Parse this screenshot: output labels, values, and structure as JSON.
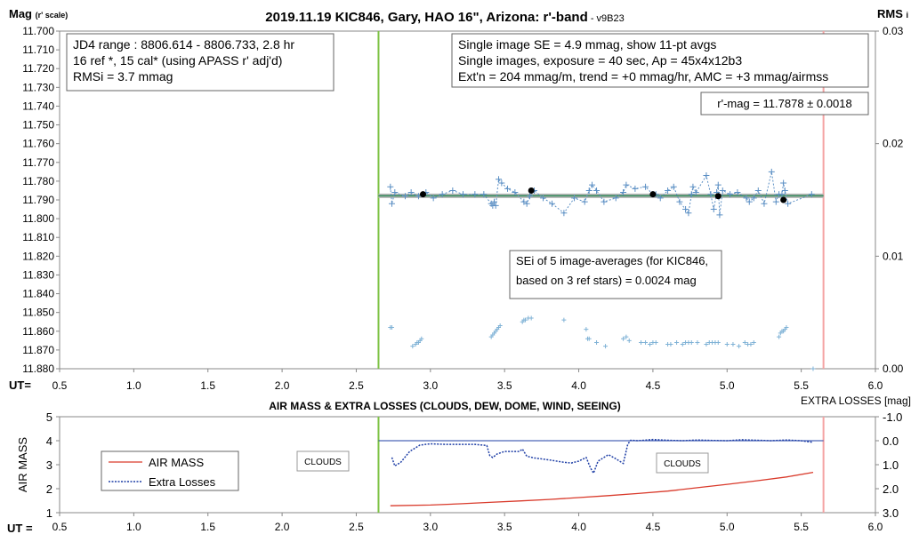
{
  "chart_data": [
    {
      "type": "scatter",
      "title": "2019.11.19 KIC846, Gary, HAO 16\", Arizona: r'-band",
      "version_tag": "- v9B23",
      "ylabel_left": "Mag",
      "ylabel_left_note": "(r' scale)",
      "ylabel_right": "RMS",
      "ylabel_right_note": "i",
      "xlabel": "UT=",
      "x_range": [
        0.5,
        6.0
      ],
      "x_ticks": [
        "0.5",
        "1.0",
        "1.5",
        "2.0",
        "2.5",
        "3.0",
        "3.5",
        "4.0",
        "4.5",
        "5.0",
        "5.5",
        "6.0"
      ],
      "y_range": [
        11.7,
        11.88
      ],
      "y_reversed": true,
      "y_ticks": [
        "11.700",
        "11.710",
        "11.720",
        "11.730",
        "11.740",
        "11.750",
        "11.760",
        "11.770",
        "11.780",
        "11.790",
        "11.800",
        "11.810",
        "11.820",
        "11.830",
        "11.840",
        "11.850",
        "11.860",
        "11.870",
        "11.880"
      ],
      "y2_range": [
        0.0,
        0.03
      ],
      "y2_ticks": [
        "0.03",
        "0.02",
        "0.01",
        "0.00"
      ],
      "grid": false,
      "vertical_markers": [
        {
          "x": 2.65,
          "color": "#7cc242"
        },
        {
          "x": 5.65,
          "color": "#f4a3a3"
        }
      ],
      "annotations": {
        "box1": [
          "JD4 range : 8806.614 - 8806.733,  2.8  hr",
          "16 ref *, 15 cal* (using APASS r' adj'd)",
          "RMSi = 3.7 mmag"
        ],
        "box2": [
          "Single image SE = 4.9 mmag, show  11-pt avgs",
          "Single images, exposure = 40 sec, Ap = 45x4x12b3",
          "Ext'n = 204 mmag/m, trend =  +0 mmag/hr, AMC = +3 mmag/airmss"
        ],
        "box3": "r'-mag = 11.7878 ± 0.0018",
        "box4": [
          "SEi of 5 image-averages (for KIC846,",
          "based on 3 ref stars) = 0.0024 mag"
        ]
      },
      "series": [
        {
          "role": "single-images",
          "color": "#5b8fc4",
          "x": [
            2.73,
            2.74,
            2.76,
            2.83,
            2.87,
            2.92,
            2.97,
            3.02,
            3.08,
            3.15,
            3.22,
            3.3,
            3.36,
            3.41,
            3.42,
            3.43,
            3.44,
            3.46,
            3.48,
            3.52,
            3.57,
            3.63,
            3.65,
            3.67,
            3.7,
            3.76,
            3.82,
            3.9,
            3.97,
            4.04,
            4.07,
            4.09,
            4.12,
            4.17,
            4.25,
            4.3,
            4.32,
            4.38,
            4.45,
            4.5,
            4.52,
            4.55,
            4.6,
            4.64,
            4.68,
            4.72,
            4.74,
            4.76,
            4.77,
            4.79,
            4.86,
            4.89,
            4.91,
            4.93,
            4.94,
            4.95,
            4.97,
            5.02,
            5.07,
            5.13,
            5.15,
            5.18,
            5.21,
            5.25,
            5.3,
            5.33,
            5.35,
            5.37,
            5.38,
            5.39,
            5.41,
            5.57
          ],
          "y": [
            11.783,
            11.792,
            11.786,
            11.788,
            11.786,
            11.788,
            11.786,
            11.789,
            11.787,
            11.785,
            11.787,
            11.787,
            11.787,
            11.792,
            11.793,
            11.791,
            11.793,
            11.779,
            11.781,
            11.784,
            11.786,
            11.791,
            11.792,
            11.788,
            11.785,
            11.789,
            11.792,
            11.797,
            11.789,
            11.791,
            11.785,
            11.782,
            11.785,
            11.791,
            11.789,
            11.786,
            11.782,
            11.784,
            11.783,
            11.787,
            11.787,
            11.789,
            11.785,
            11.783,
            11.791,
            11.795,
            11.797,
            11.787,
            11.783,
            11.786,
            11.777,
            11.787,
            11.795,
            11.786,
            11.782,
            11.798,
            11.785,
            11.787,
            11.786,
            11.789,
            11.791,
            11.789,
            11.785,
            11.792,
            11.775,
            11.791,
            11.787,
            11.787,
            11.781,
            11.785,
            11.792,
            11.787
          ]
        },
        {
          "role": "averages",
          "color": "#000000",
          "x": [
            2.95,
            3.68,
            4.5,
            4.94,
            5.38
          ],
          "y": [
            11.787,
            11.785,
            11.787,
            11.788,
            11.79
          ]
        },
        {
          "role": "ref-stars",
          "color": "#7fb2d6",
          "x": [
            2.73,
            2.74,
            2.88,
            2.9,
            2.91,
            2.92,
            2.93,
            2.94,
            3.41,
            3.42,
            3.43,
            3.44,
            3.45,
            3.46,
            3.47,
            3.62,
            3.63,
            3.64,
            3.66,
            3.68,
            3.9,
            4.05,
            4.06,
            4.07,
            4.12,
            4.18,
            4.3,
            4.32,
            4.34,
            4.42,
            4.45,
            4.48,
            4.5,
            4.52,
            4.6,
            4.62,
            4.66,
            4.7,
            4.72,
            4.74,
            4.76,
            4.8,
            4.86,
            4.88,
            4.9,
            4.92,
            4.94,
            5.0,
            5.04,
            5.08,
            5.12,
            5.14,
            5.16,
            5.18,
            5.35,
            5.36,
            5.37,
            5.38,
            5.39,
            5.4,
            5.58
          ],
          "y": [
            11.858,
            11.858,
            11.868,
            11.867,
            11.866,
            11.866,
            11.865,
            11.864,
            11.863,
            11.862,
            11.861,
            11.86,
            11.859,
            11.858,
            11.857,
            11.855,
            11.854,
            11.854,
            11.853,
            11.853,
            11.854,
            11.859,
            11.864,
            11.864,
            11.866,
            11.868,
            11.864,
            11.863,
            11.865,
            11.866,
            11.866,
            11.867,
            11.866,
            11.866,
            11.867,
            11.867,
            11.866,
            11.867,
            11.866,
            11.866,
            11.866,
            11.866,
            11.867,
            11.866,
            11.866,
            11.866,
            11.866,
            11.867,
            11.867,
            11.868,
            11.866,
            11.867,
            11.867,
            11.866,
            11.863,
            11.861,
            11.86,
            11.86,
            11.859,
            11.858,
            11.88
          ]
        }
      ],
      "fit_line": {
        "x": [
          2.65,
          5.65
        ],
        "y": [
          11.7878,
          11.7878
        ]
      }
    },
    {
      "type": "line",
      "title": "AIR MASS & EXTRA LOSSES (CLOUDS, DEW, DOME, WIND, SEEING)",
      "ylabel": "AIR MASS",
      "ylabel_right": "EXTRA LOSSES [mag]",
      "xlabel": "UT =",
      "x_range": [
        0.5,
        6.0
      ],
      "x_ticks": [
        "0.5",
        "1.0",
        "1.5",
        "2.0",
        "2.5",
        "3.0",
        "3.5",
        "4.0",
        "4.5",
        "5.0",
        "5.5",
        "6.0"
      ],
      "y_range": [
        1,
        5
      ],
      "y_ticks": [
        "5",
        "4",
        "3",
        "2",
        "1"
      ],
      "y2_range": [
        -1.0,
        3.0
      ],
      "y2_reversed": true,
      "y2_ticks": [
        "-1.0",
        "0.0",
        "1.0",
        "2.0",
        "3.0"
      ],
      "vertical_markers": [
        {
          "x": 2.65,
          "color": "#7cc242"
        },
        {
          "x": 5.65,
          "color": "#f4a3a3"
        }
      ],
      "annotations": [
        "CLOUDS",
        "CLOUDS"
      ],
      "series": [
        {
          "name": "AIR MASS",
          "color": "#d93a2b",
          "x": [
            2.73,
            3.0,
            3.2,
            3.4,
            3.6,
            3.8,
            4.0,
            4.2,
            4.4,
            4.6,
            4.8,
            5.0,
            5.2,
            5.4,
            5.58
          ],
          "y": [
            1.29,
            1.32,
            1.37,
            1.43,
            1.49,
            1.55,
            1.63,
            1.71,
            1.8,
            1.9,
            2.04,
            2.18,
            2.33,
            2.49,
            2.68
          ]
        },
        {
          "name": "Extra Losses",
          "color": "#1f3fa6",
          "x": [
            2.74,
            2.76,
            2.8,
            2.86,
            2.93,
            3.0,
            3.1,
            3.2,
            3.3,
            3.38,
            3.4,
            3.42,
            3.45,
            3.5,
            3.6,
            3.62,
            3.65,
            3.7,
            3.8,
            3.9,
            3.95,
            4.0,
            4.05,
            4.08,
            4.1,
            4.13,
            4.2,
            4.25,
            4.3,
            4.33,
            4.35,
            4.4,
            4.5,
            4.6,
            4.7,
            4.8,
            4.9,
            5.0,
            5.1,
            5.2,
            5.3,
            5.4,
            5.5,
            5.56,
            5.58
          ],
          "y": [
            0.7,
            1.05,
            0.9,
            0.45,
            0.18,
            0.13,
            0.15,
            0.15,
            0.15,
            0.2,
            0.62,
            0.7,
            0.55,
            0.45,
            0.45,
            0.35,
            0.65,
            0.72,
            0.8,
            0.9,
            0.93,
            0.85,
            0.7,
            1.15,
            1.35,
            0.85,
            0.58,
            0.75,
            0.95,
            0.15,
            -0.02,
            0.0,
            -0.05,
            -0.02,
            0.0,
            -0.03,
            -0.01,
            0.0,
            -0.04,
            -0.02,
            0.0,
            -0.03,
            0.0,
            0.05,
            0.07
          ]
        },
        {
          "name": "",
          "color": "#1f3fa6",
          "style": "baseline",
          "x": [
            2.65,
            5.65
          ],
          "y": [
            0.0,
            0.0
          ]
        }
      ]
    }
  ]
}
